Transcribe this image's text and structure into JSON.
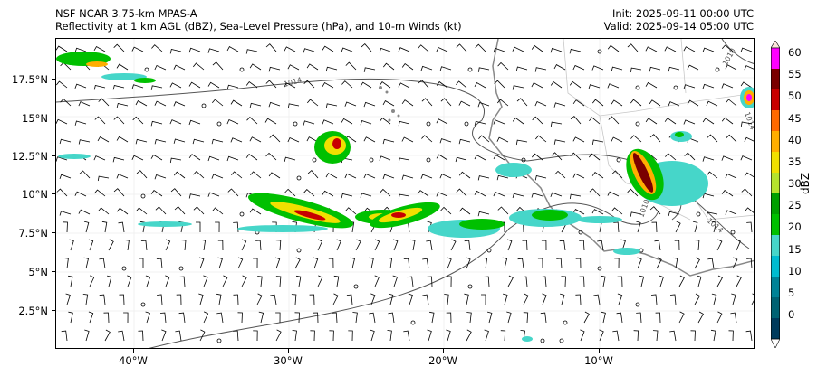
{
  "title": {
    "left_line1": "NSF NCAR 3.75-km MPAS-A",
    "left_line2": "Reflectivity at 1 km AGL (dBZ), Sea-Level Pressure (hPa), and 10-m Winds (kt)",
    "right_line1": "Init: 2025-09-11 00:00 UTC",
    "right_line2": "Valid: 2025-09-14 05:00 UTC"
  },
  "axes": {
    "lat_labels": [
      "17.5°N",
      "15°N",
      "12.5°N",
      "10°N",
      "7.5°N",
      "5°N",
      "2.5°N"
    ],
    "lon_labels": [
      "40°W",
      "30°W",
      "20°W",
      "10°W"
    ]
  },
  "isobars": [
    "1014",
    "1010",
    "1014",
    "1014",
    "1010"
  ],
  "colorbar": {
    "unit": "dBZ",
    "ticks": [
      "60",
      "55",
      "50",
      "45",
      "40",
      "35",
      "30",
      "25",
      "20",
      "15",
      "10",
      "5",
      "0"
    ],
    "colors": [
      "#fde6dc",
      "#ff00ff",
      "#7a0000",
      "#c80000",
      "#ff6a00",
      "#ffae00",
      "#f0e000",
      "#b5e32c",
      "#00a000",
      "#00c000",
      "#46d6c9",
      "#00bcd0",
      "#008296",
      "#006273",
      "#003b5c",
      "#ffffff"
    ]
  }
}
